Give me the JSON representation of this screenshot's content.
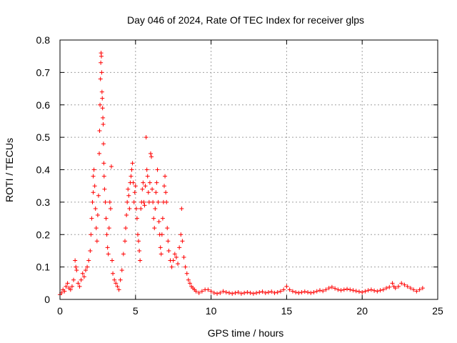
{
  "chart_data": {
    "type": "scatter",
    "title": "Day 046 of 2024, Rate Of TEC Index for receiver glps",
    "xlabel": "GPS time / hours",
    "ylabel": "ROTI / TECUs",
    "xlim": [
      0,
      25
    ],
    "ylim": [
      0,
      0.8
    ],
    "xticks": [
      0,
      5,
      10,
      15,
      20,
      25
    ],
    "yticks": [
      0,
      0.1,
      0.2,
      0.3,
      0.4,
      0.5,
      0.6,
      0.7,
      0.8
    ],
    "xtick_labels": [
      "0",
      "5",
      "10",
      "15",
      "20",
      "25"
    ],
    "ytick_labels": [
      "0",
      "0.1",
      "0.2",
      "0.3",
      "0.4",
      "0.5",
      "0.6",
      "0.7",
      "0.8"
    ],
    "grid": true,
    "marker": "+",
    "marker_color": "#ff0000",
    "series": [
      {
        "name": "ROTI",
        "points": [
          [
            0.0,
            0.015
          ],
          [
            0.1,
            0.02
          ],
          [
            0.2,
            0.03
          ],
          [
            0.3,
            0.025
          ],
          [
            0.4,
            0.04
          ],
          [
            0.5,
            0.05
          ],
          [
            0.6,
            0.035
          ],
          [
            0.7,
            0.03
          ],
          [
            0.8,
            0.04
          ],
          [
            0.9,
            0.06
          ],
          [
            1.0,
            0.12
          ],
          [
            1.05,
            0.1
          ],
          [
            1.1,
            0.09
          ],
          [
            1.2,
            0.05
          ],
          [
            1.3,
            0.04
          ],
          [
            1.4,
            0.06
          ],
          [
            1.5,
            0.08
          ],
          [
            1.6,
            0.07
          ],
          [
            1.7,
            0.09
          ],
          [
            1.8,
            0.1
          ],
          [
            1.9,
            0.12
          ],
          [
            2.0,
            0.15
          ],
          [
            2.05,
            0.2
          ],
          [
            2.1,
            0.25
          ],
          [
            2.15,
            0.3
          ],
          [
            2.2,
            0.33
          ],
          [
            2.2,
            0.38
          ],
          [
            2.25,
            0.4
          ],
          [
            2.3,
            0.35
          ],
          [
            2.35,
            0.28
          ],
          [
            2.4,
            0.22
          ],
          [
            2.45,
            0.18
          ],
          [
            2.5,
            0.26
          ],
          [
            2.55,
            0.32
          ],
          [
            2.6,
            0.45
          ],
          [
            2.62,
            0.52
          ],
          [
            2.65,
            0.6
          ],
          [
            2.68,
            0.68
          ],
          [
            2.7,
            0.73
          ],
          [
            2.72,
            0.76
          ],
          [
            2.74,
            0.75
          ],
          [
            2.76,
            0.7
          ],
          [
            2.78,
            0.64
          ],
          [
            2.8,
            0.62
          ],
          [
            2.82,
            0.59
          ],
          [
            2.84,
            0.56
          ],
          [
            2.86,
            0.54
          ],
          [
            2.88,
            0.48
          ],
          [
            2.9,
            0.42
          ],
          [
            2.92,
            0.38
          ],
          [
            2.95,
            0.34
          ],
          [
            3.0,
            0.3
          ],
          [
            3.05,
            0.25
          ],
          [
            3.1,
            0.2
          ],
          [
            3.15,
            0.16
          ],
          [
            3.2,
            0.14
          ],
          [
            3.25,
            0.22
          ],
          [
            3.3,
            0.3
          ],
          [
            3.35,
            0.28
          ],
          [
            3.4,
            0.41
          ],
          [
            3.45,
            0.12
          ],
          [
            3.5,
            0.08
          ],
          [
            3.6,
            0.06
          ],
          [
            3.7,
            0.05
          ],
          [
            3.8,
            0.04
          ],
          [
            3.9,
            0.03
          ],
          [
            4.0,
            0.06
          ],
          [
            4.1,
            0.09
          ],
          [
            4.2,
            0.14
          ],
          [
            4.3,
            0.18
          ],
          [
            4.35,
            0.22
          ],
          [
            4.4,
            0.26
          ],
          [
            4.45,
            0.3
          ],
          [
            4.5,
            0.34
          ],
          [
            4.55,
            0.32
          ],
          [
            4.6,
            0.28
          ],
          [
            4.65,
            0.36
          ],
          [
            4.7,
            0.38
          ],
          [
            4.75,
            0.4
          ],
          [
            4.8,
            0.42
          ],
          [
            4.85,
            0.36
          ],
          [
            4.9,
            0.3
          ],
          [
            4.95,
            0.33
          ],
          [
            5.0,
            0.35
          ],
          [
            5.05,
            0.28
          ],
          [
            5.1,
            0.25
          ],
          [
            5.15,
            0.2
          ],
          [
            5.2,
            0.18
          ],
          [
            5.25,
            0.15
          ],
          [
            5.3,
            0.12
          ],
          [
            5.35,
            0.28
          ],
          [
            5.4,
            0.3
          ],
          [
            5.45,
            0.34
          ],
          [
            5.5,
            0.36
          ],
          [
            5.55,
            0.3
          ],
          [
            5.6,
            0.29
          ],
          [
            5.65,
            0.35
          ],
          [
            5.7,
            0.5
          ],
          [
            5.75,
            0.4
          ],
          [
            5.8,
            0.38
          ],
          [
            5.85,
            0.33
          ],
          [
            5.9,
            0.3
          ],
          [
            5.95,
            0.36
          ],
          [
            6.0,
            0.45
          ],
          [
            6.05,
            0.44
          ],
          [
            6.1,
            0.34
          ],
          [
            6.15,
            0.3
          ],
          [
            6.2,
            0.25
          ],
          [
            6.25,
            0.22
          ],
          [
            6.3,
            0.28
          ],
          [
            6.35,
            0.33
          ],
          [
            6.4,
            0.36
          ],
          [
            6.45,
            0.4
          ],
          [
            6.5,
            0.3
          ],
          [
            6.55,
            0.24
          ],
          [
            6.6,
            0.2
          ],
          [
            6.65,
            0.16
          ],
          [
            6.7,
            0.14
          ],
          [
            6.75,
            0.2
          ],
          [
            6.8,
            0.25
          ],
          [
            6.85,
            0.3
          ],
          [
            6.9,
            0.35
          ],
          [
            6.95,
            0.38
          ],
          [
            7.0,
            0.33
          ],
          [
            7.05,
            0.3
          ],
          [
            7.1,
            0.22
          ],
          [
            7.15,
            0.18
          ],
          [
            7.2,
            0.15
          ],
          [
            7.3,
            0.12
          ],
          [
            7.4,
            0.1
          ],
          [
            7.5,
            0.12
          ],
          [
            7.6,
            0.14
          ],
          [
            7.7,
            0.13
          ],
          [
            7.8,
            0.11
          ],
          [
            7.9,
            0.16
          ],
          [
            8.0,
            0.2
          ],
          [
            8.05,
            0.28
          ],
          [
            8.1,
            0.18
          ],
          [
            8.2,
            0.13
          ],
          [
            8.3,
            0.1
          ],
          [
            8.4,
            0.08
          ],
          [
            8.5,
            0.06
          ],
          [
            8.6,
            0.05
          ],
          [
            8.7,
            0.04
          ],
          [
            8.8,
            0.035
          ],
          [
            8.9,
            0.03
          ],
          [
            9.0,
            0.025
          ],
          [
            9.2,
            0.02
          ],
          [
            9.4,
            0.025
          ],
          [
            9.6,
            0.03
          ],
          [
            9.8,
            0.03
          ],
          [
            10.0,
            0.025
          ],
          [
            10.2,
            0.02
          ],
          [
            10.4,
            0.018
          ],
          [
            10.6,
            0.02
          ],
          [
            10.8,
            0.025
          ],
          [
            11.0,
            0.022
          ],
          [
            11.2,
            0.02
          ],
          [
            11.4,
            0.018
          ],
          [
            11.6,
            0.02
          ],
          [
            11.8,
            0.022
          ],
          [
            12.0,
            0.018
          ],
          [
            12.2,
            0.02
          ],
          [
            12.4,
            0.022
          ],
          [
            12.6,
            0.02
          ],
          [
            12.8,
            0.018
          ],
          [
            13.0,
            0.02
          ],
          [
            13.2,
            0.022
          ],
          [
            13.4,
            0.024
          ],
          [
            13.6,
            0.02
          ],
          [
            13.8,
            0.022
          ],
          [
            14.0,
            0.024
          ],
          [
            14.2,
            0.02
          ],
          [
            14.4,
            0.022
          ],
          [
            14.6,
            0.025
          ],
          [
            14.8,
            0.03
          ],
          [
            15.0,
            0.04
          ],
          [
            15.2,
            0.03
          ],
          [
            15.4,
            0.025
          ],
          [
            15.6,
            0.022
          ],
          [
            15.8,
            0.02
          ],
          [
            16.0,
            0.022
          ],
          [
            16.2,
            0.024
          ],
          [
            16.4,
            0.022
          ],
          [
            16.6,
            0.02
          ],
          [
            16.8,
            0.022
          ],
          [
            17.0,
            0.025
          ],
          [
            17.2,
            0.028
          ],
          [
            17.4,
            0.026
          ],
          [
            17.6,
            0.03
          ],
          [
            17.8,
            0.035
          ],
          [
            18.0,
            0.038
          ],
          [
            18.2,
            0.034
          ],
          [
            18.4,
            0.03
          ],
          [
            18.6,
            0.028
          ],
          [
            18.8,
            0.03
          ],
          [
            19.0,
            0.032
          ],
          [
            19.2,
            0.03
          ],
          [
            19.4,
            0.028
          ],
          [
            19.6,
            0.026
          ],
          [
            19.8,
            0.024
          ],
          [
            20.0,
            0.022
          ],
          [
            20.2,
            0.025
          ],
          [
            20.4,
            0.028
          ],
          [
            20.6,
            0.03
          ],
          [
            20.8,
            0.027
          ],
          [
            21.0,
            0.025
          ],
          [
            21.2,
            0.028
          ],
          [
            21.4,
            0.03
          ],
          [
            21.6,
            0.035
          ],
          [
            21.8,
            0.038
          ],
          [
            22.0,
            0.05
          ],
          [
            22.1,
            0.04
          ],
          [
            22.2,
            0.035
          ],
          [
            22.4,
            0.04
          ],
          [
            22.6,
            0.05
          ],
          [
            22.8,
            0.045
          ],
          [
            23.0,
            0.04
          ],
          [
            23.2,
            0.035
          ],
          [
            23.4,
            0.03
          ],
          [
            23.6,
            0.025
          ],
          [
            23.8,
            0.03
          ],
          [
            24.0,
            0.035
          ]
        ]
      }
    ]
  }
}
